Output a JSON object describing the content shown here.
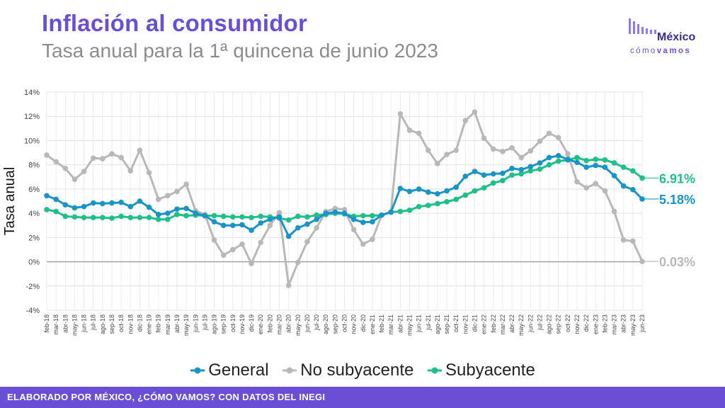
{
  "header": {
    "title": "Inflación al consumidor",
    "subtitle": "Tasa anual para la 1ª quincena de junio 2023"
  },
  "logo": {
    "name": "México",
    "tag_light": "cómo",
    "tag_bold": "vamos"
  },
  "footer": {
    "text": "ELABORADO POR MÉXICO, ¿CÓMO VAMOS? CON DATOS DEL INEGI"
  },
  "colors": {
    "brand": "#6a4fd6",
    "general": "#1a93c6",
    "no_subyacente": "#b8b8b8",
    "subyacente": "#1fbf8a"
  },
  "chart_data": {
    "type": "line",
    "ylabel": "Tasa anual",
    "ylim": [
      -4,
      14
    ],
    "yticks": [
      -4,
      -2,
      0,
      2,
      4,
      6,
      8,
      10,
      12,
      14
    ],
    "ytick_labels": [
      "-4%",
      "-2%",
      "0%",
      "2%",
      "4%",
      "6%",
      "8%",
      "10%",
      "12%",
      "14%"
    ],
    "grid": true,
    "legend_position": "bottom",
    "categories": [
      "feb-18",
      "mar-18",
      "abr-18",
      "may-18",
      "jun-18",
      "jul-18",
      "ago-18",
      "sep-18",
      "oct-18",
      "nov-18",
      "dic-18",
      "ene-19",
      "feb-19",
      "mar-19",
      "abr-19",
      "may-19",
      "jun-19",
      "jul-19",
      "ago-19",
      "sep-19",
      "oct-19",
      "nov-19",
      "dic-19",
      "ene-20",
      "feb-20",
      "mar-20",
      "abr-20",
      "may-20",
      "jun-20",
      "jul-20",
      "ago-20",
      "sep-20",
      "oct-20",
      "nov-20",
      "dic-20",
      "ene-21",
      "feb-21",
      "mar-21",
      "abr-21",
      "may-21",
      "jun-21",
      "jul-21",
      "ago-21",
      "sep-21",
      "oct-21",
      "nov-21",
      "dic-21",
      "ene-22",
      "feb-22",
      "mar-22",
      "abr-22",
      "may-22",
      "jun-22",
      "jul-22",
      "ago-22",
      "sep-22",
      "oct-22",
      "nov-22",
      "dic-22",
      "ene-23",
      "feb-23",
      "mar-23",
      "abr-23",
      "may-23",
      "jun-23"
    ],
    "series": [
      {
        "name": "General",
        "color": "#1a93c6",
        "end_label": "5.18%",
        "values": [
          5.45,
          5.15,
          4.7,
          4.45,
          4.55,
          4.85,
          4.8,
          4.85,
          4.9,
          4.55,
          5.0,
          4.5,
          3.9,
          4.0,
          4.35,
          4.4,
          4.0,
          3.8,
          3.3,
          3.0,
          3.0,
          3.05,
          2.6,
          3.2,
          3.5,
          3.7,
          2.1,
          2.8,
          3.1,
          3.5,
          4.0,
          4.1,
          4.0,
          3.5,
          3.25,
          3.3,
          3.85,
          4.1,
          6.05,
          5.8,
          6.0,
          5.75,
          5.6,
          5.85,
          6.15,
          7.05,
          7.45,
          7.15,
          7.25,
          7.3,
          7.7,
          7.6,
          7.85,
          8.15,
          8.6,
          8.75,
          8.45,
          8.2,
          7.8,
          7.95,
          7.8,
          7.1,
          6.25,
          5.95,
          5.18
        ]
      },
      {
        "name": "No subyacente",
        "color": "#b8b8b8",
        "end_label": "0.03%",
        "values": [
          8.8,
          8.25,
          7.7,
          6.8,
          7.45,
          8.55,
          8.5,
          8.9,
          8.6,
          7.5,
          9.2,
          7.35,
          5.15,
          5.45,
          5.8,
          6.4,
          4.2,
          3.9,
          1.8,
          0.55,
          1.0,
          1.45,
          -0.15,
          1.6,
          3.0,
          4.05,
          -1.95,
          -0.05,
          1.65,
          2.8,
          4.15,
          4.4,
          4.3,
          2.65,
          1.45,
          1.85,
          3.85,
          4.1,
          12.2,
          10.85,
          10.6,
          9.2,
          8.1,
          8.85,
          9.2,
          11.65,
          12.35,
          10.2,
          9.3,
          9.1,
          9.4,
          8.6,
          9.15,
          9.95,
          10.6,
          10.25,
          8.9,
          6.6,
          6.1,
          6.45,
          5.85,
          4.15,
          1.8,
          1.7,
          0.03
        ]
      },
      {
        "name": "Subyacente",
        "color": "#1fbf8a",
        "end_label": "6.91%",
        "values": [
          4.3,
          4.15,
          3.75,
          3.7,
          3.65,
          3.65,
          3.65,
          3.6,
          3.75,
          3.65,
          3.65,
          3.65,
          3.5,
          3.5,
          3.9,
          3.8,
          3.85,
          3.8,
          3.8,
          3.75,
          3.7,
          3.7,
          3.65,
          3.75,
          3.7,
          3.6,
          3.45,
          3.75,
          3.7,
          3.85,
          3.9,
          4.0,
          3.95,
          3.75,
          3.8,
          3.8,
          3.85,
          4.1,
          4.15,
          4.25,
          4.55,
          4.65,
          4.8,
          4.95,
          5.15,
          5.5,
          5.85,
          6.1,
          6.5,
          6.7,
          7.15,
          7.25,
          7.5,
          7.65,
          8.0,
          8.3,
          8.4,
          8.6,
          8.35,
          8.45,
          8.4,
          8.15,
          7.8,
          7.5,
          6.91
        ]
      }
    ]
  }
}
